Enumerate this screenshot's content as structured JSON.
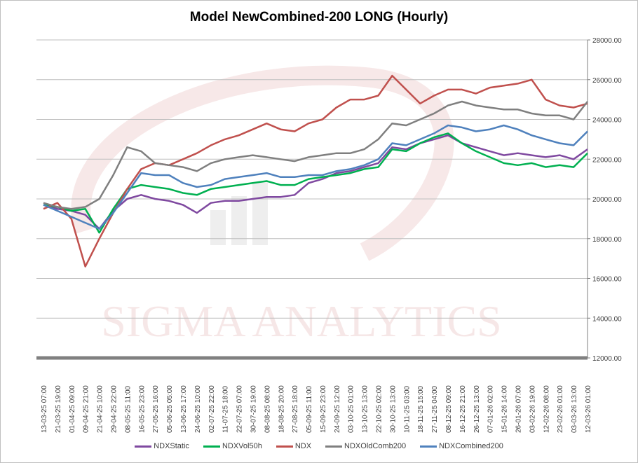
{
  "chart_data": {
    "type": "line",
    "title": "Model NewCombined-200 LONG (Hourly)",
    "watermark": "SIGMA ANALYTICS",
    "xlabel": "",
    "ylabel": "",
    "ylim": [
      12000,
      28000
    ],
    "yticks": [
      "12000.00",
      "14000.00",
      "16000.00",
      "18000.00",
      "20000.00",
      "22000.00",
      "24000.00",
      "26000.00",
      "28000.00"
    ],
    "grid": true,
    "legend_position": "bottom",
    "categories": [
      "13-03-25 07:00",
      "21-03-25 19:00",
      "01-04-25 09:00",
      "09-04-25 21:00",
      "21-04-25 10:00",
      "29-04-25 22:00",
      "08-05-25 11:00",
      "16-05-25 23:00",
      "27-05-25 16:00",
      "05-06-25 05:00",
      "13-06-25 17:00",
      "24-06-25 10:00",
      "02-07-25 22:00",
      "11-07-25 18:00",
      "22-07-25 07:00",
      "30-07-25 19:00",
      "08-08-25 08:00",
      "18-08-25 20:00",
      "27-08-25 18:00",
      "05-09-25 11:00",
      "15-09-25 23:00",
      "24-09-25 12:00",
      "03-10-25 01:00",
      "13-10-25 13:00",
      "22-10-25 02:00",
      "30-10-25 13:00",
      "10-11-25 03:00",
      "18-11-25 15:00",
      "27-11-25 04:00",
      "08-12-25 09:00",
      "16-12-25 21:00",
      "26-12-25 13:00",
      "07-01-26 02:00",
      "15-01-26 14:00",
      "26-01-26 07:00",
      "03-02-26 19:00",
      "12-02-26 08:00",
      "23-02-26 01:00",
      "03-03-26 13:00",
      "12-03-26 01:00"
    ],
    "series": [
      {
        "name": "NDXStatic",
        "color": "#7f49a0",
        "values": [
          19700,
          19500,
          19400,
          19200,
          18500,
          19400,
          20000,
          20200,
          20000,
          19900,
          19700,
          19300,
          19800,
          19900,
          19900,
          20000,
          20100,
          20100,
          20200,
          20800,
          21000,
          21300,
          21400,
          21600,
          21800,
          22600,
          22500,
          22800,
          23000,
          23200,
          22800,
          22600,
          22400,
          22200,
          22300,
          22200,
          22100,
          22200,
          22000,
          22500
        ]
      },
      {
        "name": "NDXVol50h",
        "color": "#00b050",
        "values": [
          19700,
          19600,
          19400,
          19500,
          18300,
          19500,
          20500,
          20700,
          20600,
          20500,
          20300,
          20200,
          20500,
          20600,
          20700,
          20800,
          20900,
          20700,
          20700,
          21000,
          21100,
          21200,
          21300,
          21500,
          21600,
          22500,
          22400,
          22800,
          23100,
          23300,
          22800,
          22400,
          22100,
          21800,
          21700,
          21800,
          21600,
          21700,
          21600,
          22300
        ]
      },
      {
        "name": "NDX",
        "color": "#c0504d",
        "values": [
          19500,
          19800,
          19000,
          16600,
          18000,
          19300,
          20500,
          21500,
          21800,
          21700,
          22000,
          22300,
          22700,
          23000,
          23200,
          23500,
          23800,
          23500,
          23400,
          23800,
          24000,
          24600,
          25000,
          25000,
          25200,
          26200,
          25500,
          24800,
          25200,
          25500,
          25500,
          25300,
          25600,
          25700,
          25800,
          26000,
          25000,
          24700,
          24600,
          24800
        ]
      },
      {
        "name": "NDXOldComb200",
        "color": "#7f7f7f",
        "values": [
          19800,
          19600,
          19500,
          19600,
          20000,
          21200,
          22600,
          22400,
          21800,
          21700,
          21600,
          21400,
          21800,
          22000,
          22100,
          22200,
          22100,
          22000,
          21900,
          22100,
          22200,
          22300,
          22300,
          22500,
          23000,
          23800,
          23700,
          24000,
          24300,
          24700,
          24900,
          24700,
          24600,
          24500,
          24500,
          24300,
          24200,
          24200,
          24000,
          24900
        ]
      },
      {
        "name": "NDXCombined200",
        "color": "#4f81bd",
        "values": [
          19700,
          19400,
          19100,
          18800,
          18500,
          19300,
          20300,
          21300,
          21200,
          21200,
          20800,
          20600,
          20700,
          21000,
          21100,
          21200,
          21300,
          21100,
          21100,
          21200,
          21200,
          21400,
          21500,
          21700,
          22000,
          22800,
          22700,
          23000,
          23300,
          23700,
          23600,
          23400,
          23500,
          23700,
          23500,
          23200,
          23000,
          22800,
          22700,
          23400
        ]
      }
    ]
  }
}
